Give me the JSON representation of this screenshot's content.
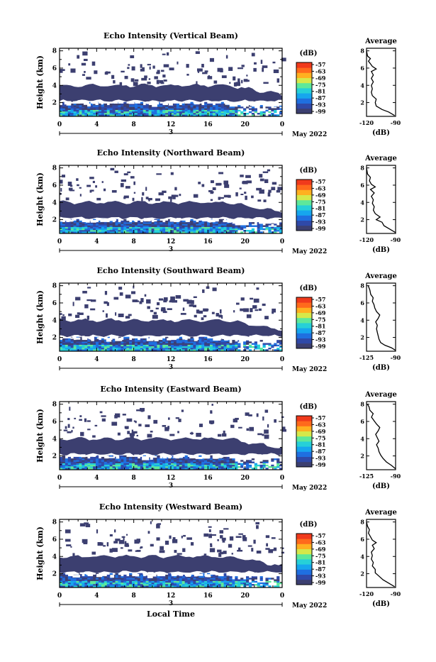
{
  "figure": {
    "date_label": "May 2022",
    "date_tick_label": "3",
    "colorbar_unit_label": "(dB)",
    "colorbar_ticks": [
      "-57",
      "-63",
      "-69",
      "-75",
      "-81",
      "-87",
      "-93",
      "-99"
    ],
    "avg_title": "Average",
    "avg_xlabel": "(dB)",
    "xlabel": "Local Time",
    "ylabel": "Height (km)"
  },
  "colors": {
    "background_fill": "#3c3f70",
    "colormap": [
      "#3c3f70",
      "#2f49a8",
      "#1f6fe0",
      "#16a6ee",
      "#26d0d8",
      "#5ee89a",
      "#d6e84a",
      "#ffb020",
      "#ff6a1c",
      "#f03a1c"
    ]
  },
  "chart_data": [
    {
      "type": "heatmap",
      "title": "Echo Intensity (Vertical Beam)",
      "xlabel": "",
      "ylabel": "Height (km)",
      "x_ticks": [
        "0",
        "4",
        "8",
        "12",
        "16",
        "20",
        "0"
      ],
      "xlim": [
        0,
        24
      ],
      "y_ticks": [
        "2",
        "4",
        "6",
        "8"
      ],
      "ylim": [
        0.4,
        8.3
      ],
      "colorbar": {
        "label": "(dB)",
        "range": [
          -99,
          -57
        ]
      },
      "dense_layer_km": [
        2.2,
        4.0
      ],
      "near_surface_layer_km": [
        0.5,
        1.8
      ],
      "average_profile": {
        "title": "Average",
        "xlabel": "(dB)",
        "x_ticks": [
          "-120",
          "-90"
        ],
        "xlim": [
          -120,
          -90
        ],
        "ylim": [
          0.4,
          8.3
        ],
        "points": [
          [
            -91,
            0.5
          ],
          [
            -97,
            0.9
          ],
          [
            -104,
            1.2
          ],
          [
            -110,
            1.6
          ],
          [
            -111,
            2.0
          ],
          [
            -110,
            2.4
          ],
          [
            -114,
            2.8
          ],
          [
            -115,
            3.2
          ],
          [
            -114,
            3.6
          ],
          [
            -115,
            4.0
          ],
          [
            -113,
            4.4
          ],
          [
            -115,
            4.8
          ],
          [
            -113,
            5.2
          ],
          [
            -115,
            5.6
          ],
          [
            -110,
            5.9
          ],
          [
            -114,
            6.2
          ],
          [
            -116,
            6.5
          ],
          [
            -118,
            6.8
          ],
          [
            -116,
            7.1
          ],
          [
            -119,
            7.4
          ],
          [
            -120,
            8.0
          ]
        ]
      }
    },
    {
      "type": "heatmap",
      "title": "Echo Intensity (Northward Beam)",
      "xlabel": "",
      "ylabel": "Height (km)",
      "x_ticks": [
        "0",
        "4",
        "8",
        "12",
        "16",
        "20",
        "0"
      ],
      "xlim": [
        0,
        24
      ],
      "y_ticks": [
        "2",
        "4",
        "6",
        "8"
      ],
      "ylim": [
        0.4,
        8.3
      ],
      "colorbar": {
        "label": "(dB)",
        "range": [
          -99,
          -57
        ]
      },
      "dense_layer_km": [
        2.2,
        4.0
      ],
      "near_surface_layer_km": [
        0.5,
        1.8
      ],
      "average_profile": {
        "title": "Average",
        "xlabel": "(dB)",
        "x_ticks": [
          "-120",
          "-90"
        ],
        "xlim": [
          -120,
          -90
        ],
        "ylim": [
          0.4,
          8.3
        ],
        "points": [
          [
            -90,
            0.5
          ],
          [
            -96,
            0.9
          ],
          [
            -102,
            1.3
          ],
          [
            -104,
            1.7
          ],
          [
            -110,
            2.0
          ],
          [
            -106,
            2.3
          ],
          [
            -111,
            2.7
          ],
          [
            -113,
            3.1
          ],
          [
            -112,
            3.5
          ],
          [
            -114,
            3.9
          ],
          [
            -113,
            4.3
          ],
          [
            -115,
            4.7
          ],
          [
            -112,
            5.1
          ],
          [
            -116,
            5.5
          ],
          [
            -111,
            5.8
          ],
          [
            -115,
            6.1
          ],
          [
            -117,
            6.5
          ],
          [
            -116,
            6.9
          ],
          [
            -119,
            7.3
          ],
          [
            -120,
            8.0
          ]
        ]
      }
    },
    {
      "type": "heatmap",
      "title": "Echo Intensity (Southward Beam)",
      "xlabel": "",
      "ylabel": "Height (km)",
      "x_ticks": [
        "0",
        "4",
        "8",
        "12",
        "16",
        "20",
        "0"
      ],
      "xlim": [
        0,
        24
      ],
      "y_ticks": [
        "2",
        "4",
        "6",
        "8"
      ],
      "ylim": [
        0.4,
        8.3
      ],
      "colorbar": {
        "label": "(dB)",
        "range": [
          -99,
          -57
        ]
      },
      "dense_layer_km": [
        2.2,
        4.0
      ],
      "near_surface_layer_km": [
        0.5,
        1.8
      ],
      "average_profile": {
        "title": "Average",
        "xlabel": "(dB)",
        "x_ticks": [
          "-125",
          "-90"
        ],
        "xlim": [
          -125,
          -90
        ],
        "ylim": [
          0.4,
          8.3
        ],
        "points": [
          [
            -90,
            0.5
          ],
          [
            -95,
            0.8
          ],
          [
            -103,
            1.1
          ],
          [
            -108,
            1.4
          ],
          [
            -110,
            1.8
          ],
          [
            -111,
            2.2
          ],
          [
            -112,
            2.6
          ],
          [
            -113,
            3.0
          ],
          [
            -112,
            3.4
          ],
          [
            -114,
            3.8
          ],
          [
            -111,
            4.2
          ],
          [
            -109,
            4.6
          ],
          [
            -113,
            5.0
          ],
          [
            -115,
            5.4
          ],
          [
            -116,
            5.8
          ],
          [
            -118,
            6.2
          ],
          [
            -117,
            6.6
          ],
          [
            -120,
            7.0
          ],
          [
            -121,
            7.5
          ],
          [
            -123,
            8.0
          ]
        ]
      }
    },
    {
      "type": "heatmap",
      "title": "Echo Intensity (Eastward Beam)",
      "xlabel": "",
      "ylabel": "Height (km)",
      "x_ticks": [
        "0",
        "4",
        "8",
        "12",
        "16",
        "20",
        "0"
      ],
      "xlim": [
        0,
        24
      ],
      "y_ticks": [
        "2",
        "4",
        "6",
        "8"
      ],
      "ylim": [
        0.4,
        8.3
      ],
      "colorbar": {
        "label": "(dB)",
        "range": [
          -99,
          -57
        ]
      },
      "dense_layer_km": [
        2.2,
        4.0
      ],
      "near_surface_layer_km": [
        0.5,
        1.8
      ],
      "average_profile": {
        "title": "Average",
        "xlabel": "(dB)",
        "x_ticks": [
          "-125",
          "-90"
        ],
        "xlim": [
          -125,
          -90
        ],
        "ylim": [
          0.4,
          8.3
        ],
        "points": [
          [
            -90,
            0.5
          ],
          [
            -95,
            0.9
          ],
          [
            -101,
            1.3
          ],
          [
            -105,
            1.7
          ],
          [
            -108,
            2.1
          ],
          [
            -110,
            2.5
          ],
          [
            -111,
            2.9
          ],
          [
            -113,
            3.3
          ],
          [
            -110,
            3.7
          ],
          [
            -112,
            4.1
          ],
          [
            -114,
            4.5
          ],
          [
            -111,
            4.9
          ],
          [
            -109,
            5.3
          ],
          [
            -113,
            5.7
          ],
          [
            -116,
            6.1
          ],
          [
            -119,
            6.5
          ],
          [
            -117,
            6.9
          ],
          [
            -121,
            7.3
          ],
          [
            -122,
            7.7
          ],
          [
            -124,
            8.0
          ]
        ]
      }
    },
    {
      "type": "heatmap",
      "title": "Echo Intensity (Westward Beam)",
      "xlabel": "Local Time",
      "ylabel": "Height (km)",
      "x_ticks": [
        "0",
        "4",
        "8",
        "12",
        "16",
        "20",
        "0"
      ],
      "xlim": [
        0,
        24
      ],
      "y_ticks": [
        "2",
        "4",
        "6",
        "8"
      ],
      "ylim": [
        0.4,
        8.3
      ],
      "colorbar": {
        "label": "(dB)",
        "range": [
          -99,
          -57
        ]
      },
      "dense_layer_km": [
        2.2,
        4.0
      ],
      "near_surface_layer_km": [
        0.5,
        1.8
      ],
      "average_profile": {
        "title": "Average",
        "xlabel": "(dB)",
        "x_ticks": [
          "-120",
          "-90"
        ],
        "xlim": [
          -120,
          -90
        ],
        "ylim": [
          0.4,
          8.3
        ],
        "points": [
          [
            -91,
            0.5
          ],
          [
            -97,
            0.9
          ],
          [
            -103,
            1.3
          ],
          [
            -107,
            1.7
          ],
          [
            -111,
            2.1
          ],
          [
            -111,
            2.5
          ],
          [
            -114,
            2.9
          ],
          [
            -113,
            3.3
          ],
          [
            -115,
            3.7
          ],
          [
            -114,
            4.1
          ],
          [
            -115,
            4.5
          ],
          [
            -112,
            4.9
          ],
          [
            -114,
            5.3
          ],
          [
            -110,
            5.6
          ],
          [
            -114,
            5.9
          ],
          [
            -116,
            6.3
          ],
          [
            -118,
            6.7
          ],
          [
            -117,
            7.1
          ],
          [
            -119,
            7.5
          ],
          [
            -120,
            8.0
          ]
        ]
      }
    }
  ]
}
